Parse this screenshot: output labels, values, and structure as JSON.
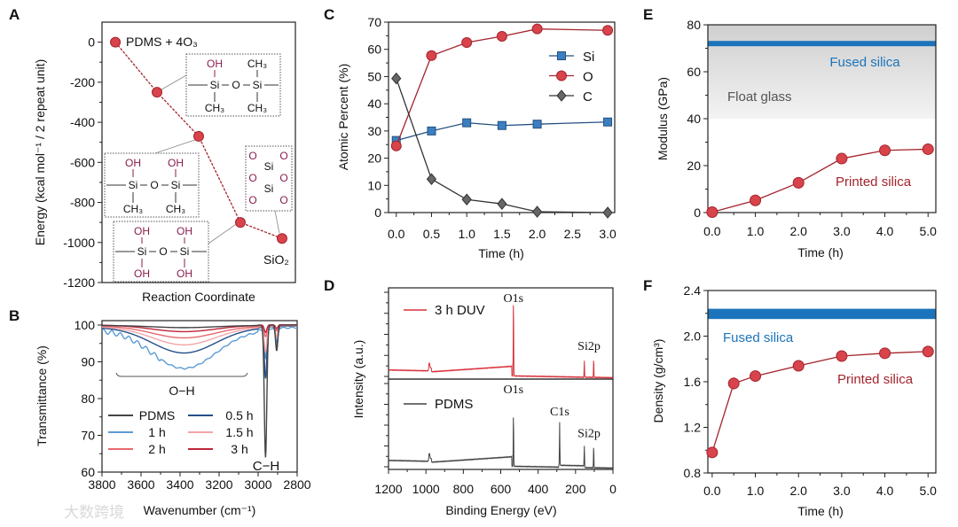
{
  "watermark": "大数跨境",
  "colors": {
    "red_fill": "#d8434c",
    "red_line": "#a3242c",
    "blue_fill": "#3b7fc2",
    "blue_line": "#25507f",
    "gray": "#555555",
    "fused_silica": "#1b74bb",
    "oh_purple": "#8a1c4e"
  },
  "chart_data": [
    {
      "panel": "A",
      "type": "line",
      "xlabel": "Reaction Coordinate",
      "ylabel": "Energy (kcal mol⁻¹ / 2 repeat unit)",
      "ylim": [
        -1200,
        100
      ],
      "yticks": [
        0,
        -200,
        -400,
        -600,
        -800,
        -1000,
        -1200
      ],
      "ytick_labels": [
        "0",
        "-200",
        "-400",
        "-600",
        "-800",
        "-1000",
        "-1200"
      ],
      "values": [
        0,
        -250,
        -470,
        -900,
        -980
      ],
      "annotations": {
        "start": "PDMS + 4O₃",
        "end": "SiO₂"
      },
      "structures": [
        {
          "top": [
            "OH",
            "CH₃"
          ],
          "mid": [
            "Si",
            "O",
            "Si"
          ],
          "bottom": [
            "CH₃",
            "CH₃"
          ]
        },
        {
          "top": [
            "OH",
            "OH"
          ],
          "mid": [
            "Si",
            "O",
            "Si"
          ],
          "bottom": [
            "CH₃",
            "CH₃"
          ]
        },
        {
          "top": [
            "OH",
            "OH"
          ],
          "mid": [
            "Si",
            "O",
            "Si"
          ],
          "bottom": [
            "OH",
            "OH"
          ]
        }
      ],
      "sio2": {
        "o": "O",
        "si": "Si"
      }
    },
    {
      "panel": "B",
      "type": "line",
      "xlabel": "Wavenumber (cm⁻¹)",
      "ylabel": "Transmittance (%)",
      "xlim": [
        3800,
        2800
      ],
      "ylim": [
        60,
        101.2
      ],
      "xticks": [
        3800,
        3600,
        3400,
        3200,
        3000,
        2800
      ],
      "xtick_labels": [
        "3800",
        "3600",
        "3400",
        "3200",
        "3000",
        "2800"
      ],
      "yticks": [
        100,
        90,
        80,
        70,
        60
      ],
      "ytick_labels": [
        "100",
        "90",
        "80",
        "70",
        "60"
      ],
      "annotations": {
        "oh": "O−H",
        "ch": "C−H"
      },
      "series": [
        {
          "name": "PDMS",
          "color": "#444444",
          "offset": 0.3,
          "oh_depth": 0.6,
          "ch_depth": 36,
          "ch2_depth": 7
        },
        {
          "name": "0.5 h",
          "color": "#24508a",
          "offset": 0.8,
          "oh_depth": 7.0,
          "ch_depth": 14,
          "ch2_depth": 6
        },
        {
          "name": "1 h",
          "color": "#5b9bd5",
          "offset": 1.5,
          "oh_depth": 10.5,
          "ch_depth": 8,
          "ch2_depth": 4
        },
        {
          "name": "1.5 h",
          "color": "#f4a5a8",
          "offset": 0.6,
          "oh_depth": 5.0,
          "ch_depth": 7,
          "ch2_depth": 3
        },
        {
          "name": "2 h",
          "color": "#e8696f",
          "offset": 0.4,
          "oh_depth": 3.3,
          "ch_depth": 3,
          "ch2_depth": 1.5
        },
        {
          "name": "3 h",
          "color": "#c0263a",
          "offset": 0.2,
          "oh_depth": 1.8,
          "ch_depth": 2,
          "ch2_depth": 1
        }
      ]
    },
    {
      "panel": "C",
      "type": "line",
      "xlabel": "Time (h)",
      "ylabel": "Atomic Percent (%)",
      "xlim": [
        -0.11,
        3.1
      ],
      "ylim": [
        0,
        70
      ],
      "xticks": [
        0,
        0.5,
        1,
        1.5,
        2,
        2.5,
        3
      ],
      "xtick_labels": [
        "0.0",
        "0.5",
        "1.0",
        "1.5",
        "2.0",
        "2.5",
        "3.0"
      ],
      "yticks": [
        0,
        10,
        20,
        30,
        40,
        50,
        60,
        70
      ],
      "ytick_labels": [
        "0",
        "10",
        "20",
        "30",
        "40",
        "50",
        "60",
        "70"
      ],
      "x": [
        0,
        0.5,
        1,
        1.5,
        2,
        3
      ],
      "legend_position": "top-right",
      "series": [
        {
          "name": "Si",
          "marker": "square",
          "values": [
            26.5,
            30,
            33,
            32,
            32.5,
            33.3
          ]
        },
        {
          "name": "O",
          "marker": "circle",
          "values": [
            24.5,
            57.7,
            62.5,
            64.8,
            67.5,
            67
          ]
        },
        {
          "name": "C",
          "marker": "diamond",
          "values": [
            49.3,
            12.3,
            4.8,
            3.2,
            0.3,
            0
          ]
        }
      ]
    },
    {
      "panel": "D",
      "type": "line",
      "xlabel": "Binding Energy (eV)",
      "ylabel": "Intensity (a.u.)",
      "xlim": [
        1200,
        0
      ],
      "xticks": [
        1200,
        1000,
        800,
        600,
        400,
        200,
        0
      ],
      "xtick_labels": [
        "1200",
        "1000",
        "800",
        "600",
        "400",
        "200",
        "0"
      ],
      "series": [
        {
          "name": "3 h DUV",
          "color": "#d8323c",
          "peaks": [
            {
              "label": "O1s",
              "ev": 532,
              "height": 0.86
            },
            {
              "label": "",
              "ev": 153,
              "height": 0.18
            },
            {
              "label": "Si2p",
              "ev": 103,
              "height": 0.2
            }
          ]
        },
        {
          "name": "PDMS",
          "color": "#444444",
          "peaks": [
            {
              "label": "O1s",
              "ev": 532,
              "height": 0.6
            },
            {
              "label": "C1s",
              "ev": 285,
              "height": 0.48
            },
            {
              "label": "",
              "ev": 153,
              "height": 0.22
            },
            {
              "label": "Si2p",
              "ev": 103,
              "height": 0.24
            }
          ]
        }
      ]
    },
    {
      "panel": "E",
      "type": "line",
      "xlabel": "Time (h)",
      "ylabel": "Modulus (GPa)",
      "xlim": [
        -0.1,
        5.18
      ],
      "ylim": [
        0,
        80
      ],
      "xticks": [
        0,
        1,
        2,
        3,
        4,
        5
      ],
      "xtick_labels": [
        "0.0",
        "1.0",
        "2.0",
        "3.0",
        "4.0",
        "5.0"
      ],
      "yticks": [
        0,
        20,
        40,
        60,
        80
      ],
      "ytick_labels": [
        "0",
        "20",
        "40",
        "60",
        "80"
      ],
      "x": [
        0,
        1,
        2,
        3,
        4,
        5
      ],
      "series": [
        {
          "name": "Printed silica",
          "values": [
            0.2,
            5.2,
            12.7,
            23,
            26.5,
            27
          ],
          "errors": [
            0.5,
            1,
            1.2,
            1,
            1.8,
            1.8
          ]
        }
      ],
      "references": {
        "fused_silica": {
          "label": "Fused silica",
          "value": 72
        },
        "float_glass": {
          "label": "Float glass",
          "range": [
            40,
            80
          ]
        }
      }
    },
    {
      "panel": "F",
      "type": "line",
      "xlabel": "Time (h)",
      "ylabel": "Density (g/cm³)",
      "xlim": [
        -0.1,
        5.18
      ],
      "ylim": [
        0.8,
        2.4
      ],
      "xticks": [
        0,
        1,
        2,
        3,
        4,
        5
      ],
      "xtick_labels": [
        "0.0",
        "1.0",
        "2.0",
        "3.0",
        "4.0",
        "5.0"
      ],
      "yticks": [
        0.8,
        1.2,
        1.6,
        2.0,
        2.4
      ],
      "ytick_labels": [
        "0.8",
        "1.2",
        "1.6",
        "2.0",
        "2.4"
      ],
      "x": [
        0,
        0.5,
        1,
        2,
        3,
        4,
        5
      ],
      "series": [
        {
          "name": "Printed silica",
          "values": [
            0.98,
            1.585,
            1.65,
            1.74,
            1.825,
            1.85,
            1.865
          ],
          "errors": [
            0.01,
            0.03,
            0.02,
            0.02,
            0.02,
            0.02,
            0.015
          ]
        }
      ],
      "references": {
        "fused_silica": {
          "label": "Fused silica",
          "range": [
            2.15,
            2.24
          ]
        }
      }
    }
  ]
}
